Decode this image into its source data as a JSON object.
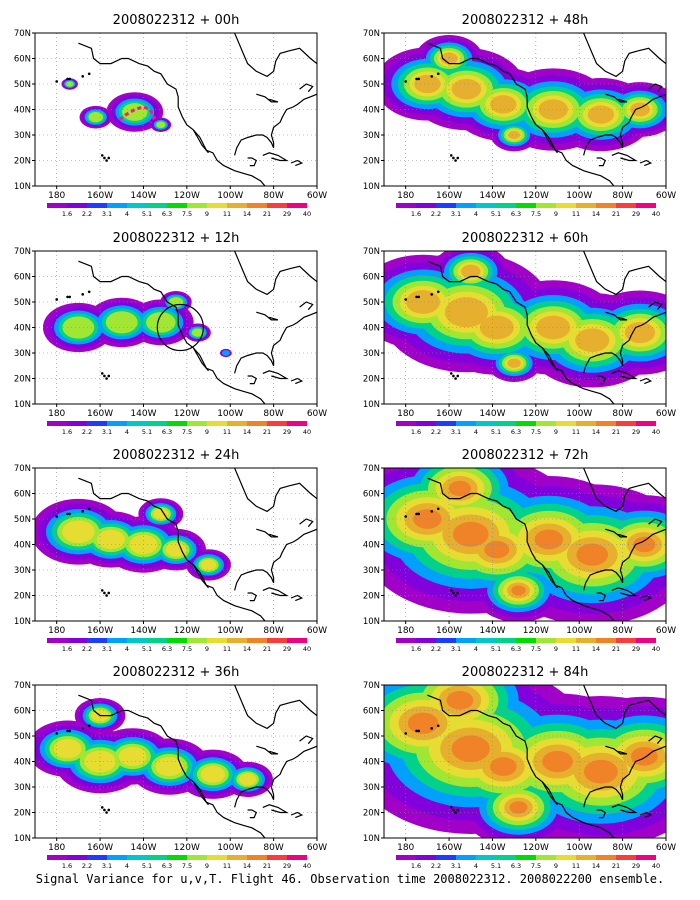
{
  "panels": [
    {
      "title": "2008022312 + 00h",
      "circle": false,
      "flight_track": true,
      "level": 0.55
    },
    {
      "title": "2008022312 + 12h",
      "circle": true,
      "flight_track": false,
      "level": 0.7
    },
    {
      "title": "2008022312 + 24h",
      "circle": false,
      "flight_track": false,
      "level": 0.8
    },
    {
      "title": "2008022312 + 36h",
      "circle": false,
      "flight_track": false,
      "level": 0.9
    },
    {
      "title": "2008022312 + 48h",
      "circle": false,
      "flight_track": false,
      "level": 1.0
    },
    {
      "title": "2008022312 + 60h",
      "circle": false,
      "flight_track": false,
      "level": 1.15
    },
    {
      "title": "2008022312 + 72h",
      "circle": false,
      "flight_track": false,
      "level": 1.35
    },
    {
      "title": "2008022312 + 84h",
      "circle": false,
      "flight_track": false,
      "level": 1.45
    }
  ],
  "lat_labels": [
    "70N",
    "60N",
    "50N",
    "40N",
    "30N",
    "20N",
    "10N"
  ],
  "lon_labels": [
    "180",
    "160W",
    "140W",
    "120W",
    "100W",
    "80W",
    "60W"
  ],
  "scale_labels": [
    "1.6",
    "2.2",
    "3.1",
    "4",
    "5.1",
    "6.3",
    "7.5",
    "9",
    "11",
    "14",
    "21",
    "29",
    "40"
  ],
  "scale_colors": [
    "#a000c8",
    "#8200dc",
    "#1e3cff",
    "#00a0ff",
    "#00c8c8",
    "#00d28c",
    "#00dc00",
    "#a0e632",
    "#e6dc32",
    "#e6af2d",
    "#f08228",
    "#fa3c3c",
    "#f00082"
  ],
  "caption": "Signal Variance for u,v,T. Flight 46. Observation time 2008022312. 2008022200 ensemble."
}
